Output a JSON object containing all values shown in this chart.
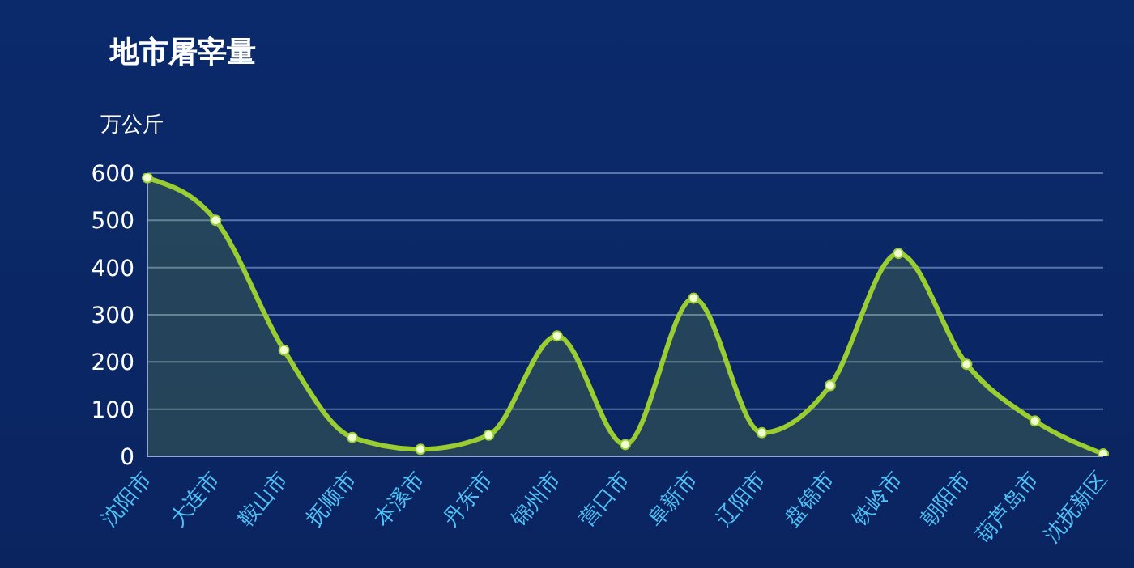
{
  "chart_data": {
    "type": "area",
    "title": "地市屠宰量",
    "ylabel": "万公斤",
    "categories": [
      "沈阳市",
      "大连市",
      "鞍山市",
      "抚顺市",
      "本溪市",
      "丹东市",
      "锦州市",
      "营口市",
      "阜新市",
      "辽阳市",
      "盘锦市",
      "铁岭市",
      "朝阳市",
      "葫芦岛市",
      "沈抚新区"
    ],
    "series": [
      {
        "color": "#9acd32",
        "values": [
          590,
          500,
          225,
          40,
          15,
          45,
          255,
          25,
          335,
          50,
          150,
          430,
          195,
          75,
          5
        ]
      }
    ],
    "ylim": [
      0,
      600
    ],
    "yticks": [
      0,
      100,
      200,
      300,
      400,
      500,
      600
    ],
    "grid": "y",
    "marker": "circle"
  }
}
